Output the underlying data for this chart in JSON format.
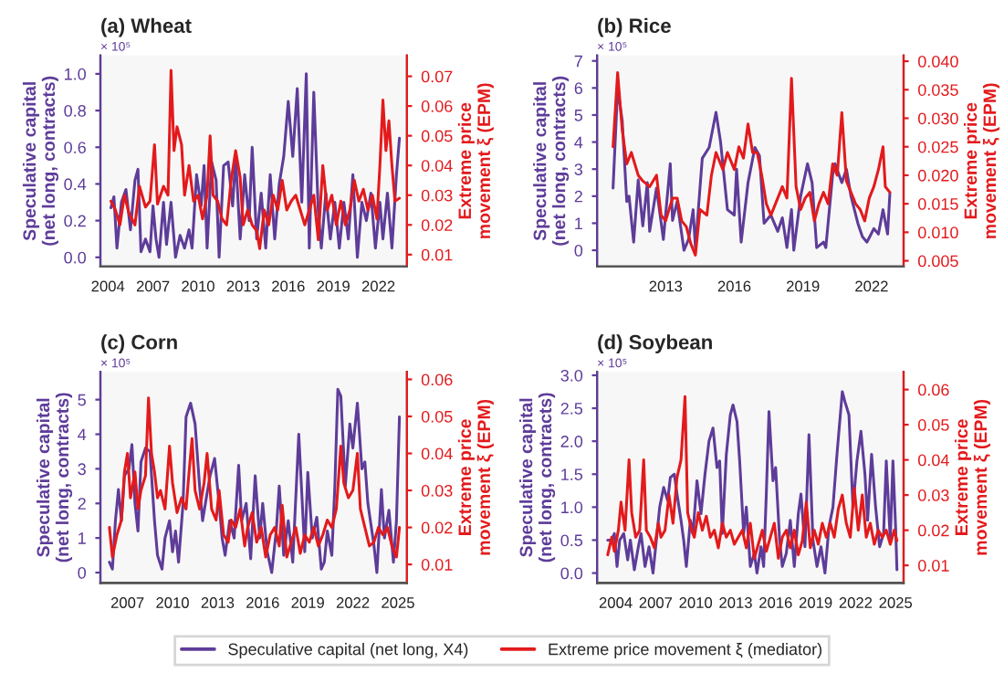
{
  "chart_data": [
    {
      "type": "line",
      "title": "(a) Wheat",
      "ylabel": "Speculative capital\n(net long, contracts)",
      "y2label": "Extreme price\nmovement ξ (EPM)",
      "annotations": [
        "× 10⁵"
      ],
      "legend": "bottom",
      "xlim": [
        2003.5,
        2023.9
      ],
      "xticks": [
        2004,
        2007,
        2010,
        2013,
        2016,
        2019,
        2022
      ],
      "ylim": [
        -0.05,
        1.1
      ],
      "yticks": [
        {
          "value": 0,
          "label": "0.0"
        },
        {
          "value": 0.2,
          "label": "0.2"
        },
        {
          "value": 0.4,
          "label": "0.4"
        },
        {
          "value": 0.6,
          "label": "0.6"
        },
        {
          "value": 0.8,
          "label": "0.8"
        },
        {
          "value": 1,
          "label": "1.0"
        }
      ],
      "y2lim": [
        0.006,
        0.077
      ],
      "y2ticks": [
        0.01,
        0.02,
        0.03,
        0.04,
        0.05,
        0.06,
        0.07
      ],
      "series": [
        {
          "name": "Speculative capital (net long, X4)",
          "color": "#5e3c99",
          "x": [
            2004.2,
            2004.4,
            2004.6,
            2004.9,
            2005.2,
            2005.5,
            2005.8,
            2006.0,
            2006.2,
            2006.5,
            2006.8,
            2007.0,
            2007.2,
            2007.4,
            2007.7,
            2007.9,
            2008.2,
            2008.5,
            2008.8,
            2009.1,
            2009.4,
            2009.6,
            2009.9,
            2010.2,
            2010.4,
            2010.6,
            2010.9,
            2011.2,
            2011.4,
            2011.7,
            2012.0,
            2012.3,
            2012.5,
            2012.8,
            2013.1,
            2013.4,
            2013.6,
            2013.9,
            2014.2,
            2014.5,
            2014.8,
            2015.1,
            2015.4,
            2015.7,
            2016.0,
            2016.3,
            2016.6,
            2016.9,
            2017.2,
            2017.4,
            2017.7,
            2018.0,
            2018.2,
            2018.5,
            2018.8,
            2019.1,
            2019.4,
            2019.7,
            2020.0,
            2020.3,
            2020.6,
            2020.9,
            2021.2,
            2021.5,
            2021.8,
            2022.1,
            2022.3,
            2022.6,
            2022.9,
            2023.2,
            2023.4
          ],
          "values": [
            0.27,
            0.33,
            0.05,
            0.3,
            0.37,
            0.15,
            0.42,
            0.48,
            0.03,
            0.1,
            0.03,
            0.28,
            0.1,
            0.0,
            0.3,
            0.07,
            0.3,
            0.0,
            0.12,
            0.05,
            0.15,
            0.05,
            0.45,
            0.28,
            0.5,
            0.05,
            0.52,
            0.42,
            0.0,
            0.5,
            0.52,
            0.28,
            0.55,
            0.1,
            0.45,
            0.2,
            0.6,
            0.1,
            0.35,
            0.05,
            0.45,
            0.1,
            0.4,
            0.55,
            0.85,
            0.55,
            0.92,
            0.3,
            1.0,
            0.05,
            0.9,
            0.25,
            0.05,
            0.35,
            0.1,
            0.3,
            0.05,
            0.3,
            0.1,
            0.45,
            0.0,
            0.3,
            0.2,
            0.35,
            0.05,
            0.3,
            0.1,
            0.35,
            0.05,
            0.45,
            0.65
          ]
        },
        {
          "name": "Extreme price movement ξ (mediator)",
          "color": "#e31a1c",
          "axis": "y2",
          "x": [
            2004.2,
            2004.5,
            2004.8,
            2005.1,
            2005.4,
            2005.8,
            2006.1,
            2006.5,
            2006.8,
            2007.1,
            2007.3,
            2007.7,
            2008.0,
            2008.2,
            2008.4,
            2008.6,
            2008.9,
            2009.1,
            2009.4,
            2009.7,
            2010.0,
            2010.3,
            2010.6,
            2010.8,
            2011.0,
            2011.3,
            2011.6,
            2011.9,
            2012.2,
            2012.5,
            2012.8,
            2013.0,
            2013.3,
            2013.6,
            2013.9,
            2014.1,
            2014.4,
            2014.7,
            2015.0,
            2015.3,
            2015.6,
            2015.9,
            2016.2,
            2016.5,
            2016.8,
            2017.1,
            2017.4,
            2017.7,
            2018.0,
            2018.3,
            2018.6,
            2018.9,
            2019.2,
            2019.5,
            2019.8,
            2020.1,
            2020.4,
            2020.7,
            2021.0,
            2021.3,
            2021.6,
            2021.9,
            2022.1,
            2022.3,
            2022.5,
            2022.7,
            2022.9,
            2023.1,
            2023.4
          ],
          "values": [
            0.028,
            0.025,
            0.02,
            0.03,
            0.024,
            0.02,
            0.033,
            0.026,
            0.028,
            0.047,
            0.027,
            0.033,
            0.03,
            0.072,
            0.045,
            0.053,
            0.047,
            0.03,
            0.04,
            0.028,
            0.03,
            0.022,
            0.03,
            0.05,
            0.03,
            0.028,
            0.022,
            0.02,
            0.035,
            0.045,
            0.036,
            0.02,
            0.025,
            0.02,
            0.018,
            0.012,
            0.025,
            0.02,
            0.03,
            0.025,
            0.035,
            0.025,
            0.028,
            0.03,
            0.025,
            0.02,
            0.025,
            0.03,
            0.015,
            0.04,
            0.025,
            0.03,
            0.02,
            0.028,
            0.02,
            0.025,
            0.035,
            0.028,
            0.032,
            0.025,
            0.03,
            0.022,
            0.04,
            0.062,
            0.045,
            0.055,
            0.04,
            0.028,
            0.029
          ]
        }
      ]
    },
    {
      "type": "line",
      "title": "(b) Rice",
      "ylabel": "Speculative capital\n(net long, contracts)",
      "y2label": "Extreme price\nmovement ξ (EPM)",
      "annotations": [
        "× 10⁵"
      ],
      "xlim": [
        2010.0,
        2023.4
      ],
      "xticks": [
        2013,
        2016,
        2019,
        2022
      ],
      "ylim": [
        -0.6,
        7.2
      ],
      "yticks": [
        0,
        1,
        2,
        3,
        4,
        5,
        6,
        7
      ],
      "y2lim": [
        0.004,
        0.041
      ],
      "y2ticks": [
        0.005,
        {
          "value": 0.01,
          "label": "0.010"
        },
        0.015,
        {
          "value": 0.02,
          "label": "0.020"
        },
        0.025,
        {
          "value": 0.03,
          "label": "0.030"
        },
        0.035,
        {
          "value": 0.04,
          "label": "0.040"
        }
      ],
      "series": [
        {
          "color": "#5e3c99",
          "x": [
            2010.7,
            2010.9,
            2011.1,
            2011.3,
            2011.4,
            2011.6,
            2011.8,
            2012.0,
            2012.2,
            2012.3,
            2012.6,
            2012.9,
            2013.2,
            2013.3,
            2013.5,
            2013.8,
            2014.0,
            2014.2,
            2014.3,
            2014.6,
            2014.9,
            2015.2,
            2015.4,
            2015.7,
            2016.0,
            2016.1,
            2016.3,
            2016.6,
            2016.9,
            2017.1,
            2017.3,
            2017.6,
            2017.9,
            2018.1,
            2018.3,
            2018.5,
            2018.6,
            2018.9,
            2019.2,
            2019.4,
            2019.6,
            2019.9,
            2020.0,
            2020.3,
            2020.4,
            2020.7,
            2020.9,
            2021.1,
            2021.4,
            2021.6,
            2021.8,
            2022.1,
            2022.3,
            2022.5,
            2022.7,
            2022.8
          ],
          "values": [
            2.3,
            6.0,
            4.8,
            1.8,
            2.0,
            0.3,
            2.6,
            0.9,
            2.5,
            0.7,
            2.3,
            0.4,
            3.2,
            1.1,
            1.8,
            0.0,
            0.4,
            1.5,
            0.1,
            3.4,
            3.8,
            5.1,
            4.0,
            1.5,
            1.3,
            3.0,
            0.3,
            2.5,
            3.8,
            3.5,
            1.0,
            1.3,
            0.7,
            1.2,
            0.1,
            1.5,
            0.0,
            2.0,
            3.2,
            2.5,
            0.1,
            0.3,
            0.1,
            2.8,
            3.2,
            2.5,
            3.0,
            2.0,
            1.0,
            0.5,
            0.3,
            0.8,
            0.6,
            1.5,
            0.6,
            2.1
          ]
        },
        {
          "color": "#e31a1c",
          "axis": "y2",
          "x": [
            2010.7,
            2010.9,
            2011.1,
            2011.3,
            2011.5,
            2011.8,
            2012.0,
            2012.3,
            2012.6,
            2012.8,
            2013.0,
            2013.3,
            2013.5,
            2013.7,
            2013.9,
            2014.1,
            2014.3,
            2014.5,
            2014.8,
            2015.0,
            2015.2,
            2015.5,
            2015.7,
            2016.0,
            2016.2,
            2016.4,
            2016.6,
            2016.8,
            2017.0,
            2017.2,
            2017.4,
            2017.6,
            2017.9,
            2018.1,
            2018.3,
            2018.5,
            2018.7,
            2018.9,
            2019.1,
            2019.3,
            2019.5,
            2019.7,
            2019.9,
            2020.1,
            2020.3,
            2020.5,
            2020.7,
            2020.9,
            2021.1,
            2021.3,
            2021.5,
            2021.7,
            2021.9,
            2022.1,
            2022.3,
            2022.5,
            2022.6,
            2022.8
          ],
          "values": [
            0.025,
            0.038,
            0.028,
            0.022,
            0.024,
            0.02,
            0.019,
            0.018,
            0.02,
            0.013,
            0.012,
            0.016,
            0.016,
            0.012,
            0.011,
            0.008,
            0.006,
            0.014,
            0.013,
            0.02,
            0.024,
            0.021,
            0.024,
            0.021,
            0.025,
            0.023,
            0.029,
            0.024,
            0.024,
            0.02,
            0.015,
            0.013,
            0.016,
            0.018,
            0.016,
            0.037,
            0.018,
            0.014,
            0.016,
            0.017,
            0.012,
            0.015,
            0.017,
            0.015,
            0.022,
            0.02,
            0.031,
            0.019,
            0.017,
            0.015,
            0.014,
            0.012,
            0.016,
            0.018,
            0.021,
            0.025,
            0.018,
            0.017
          ]
        }
      ]
    },
    {
      "type": "line",
      "title": "(c) Corn",
      "ylabel": "Speculative capital\n(net long, contracts)",
      "y2label": "Extreme price\nmovement ξ (EPM)",
      "annotations": [
        "× 10⁵"
      ],
      "xlim": [
        2005.2,
        2025.6
      ],
      "xticks": [
        2007,
        2010,
        2013,
        2016,
        2019,
        2022,
        2025
      ],
      "ylim": [
        -0.3,
        5.8
      ],
      "yticks": [
        0,
        1,
        2,
        3,
        4,
        5
      ],
      "y2lim": [
        0.005,
        0.062
      ],
      "y2ticks": [
        0.01,
        0.02,
        0.03,
        0.04,
        0.05,
        0.06
      ],
      "series": [
        {
          "color": "#5e3c99",
          "x": [
            2005.8,
            2006.0,
            2006.2,
            2006.4,
            2006.6,
            2006.8,
            2007.1,
            2007.3,
            2007.5,
            2007.7,
            2007.9,
            2008.2,
            2008.5,
            2008.8,
            2009.0,
            2009.3,
            2009.5,
            2009.8,
            2010.0,
            2010.2,
            2010.4,
            2010.7,
            2010.9,
            2011.2,
            2011.5,
            2011.8,
            2012.0,
            2012.3,
            2012.5,
            2012.8,
            2013.1,
            2013.3,
            2013.5,
            2013.8,
            2014.1,
            2014.4,
            2014.6,
            2014.9,
            2015.2,
            2015.5,
            2015.8,
            2016.0,
            2016.3,
            2016.6,
            2016.9,
            2017.1,
            2017.4,
            2017.7,
            2018.0,
            2018.4,
            2018.8,
            2019.0,
            2019.3,
            2019.6,
            2019.9,
            2020.1,
            2020.3,
            2020.6,
            2020.8,
            2021.0,
            2021.2,
            2021.5,
            2021.8,
            2022.0,
            2022.3,
            2022.6,
            2022.8,
            2023.0,
            2023.2,
            2023.4,
            2023.6,
            2023.9,
            2024.1,
            2024.4,
            2024.7,
            2024.9,
            2025.1
          ],
          "values": [
            0.3,
            0.1,
            1.5,
            2.4,
            1.5,
            2.8,
            3.0,
            3.7,
            2.0,
            1.2,
            3.2,
            3.6,
            3.5,
            1.5,
            0.5,
            0.1,
            1.0,
            1.5,
            0.6,
            1.2,
            0.3,
            2.0,
            4.5,
            4.9,
            4.3,
            2.5,
            1.5,
            2.3,
            2.8,
            3.3,
            2.0,
            1.0,
            0.5,
            1.5,
            1.0,
            3.1,
            1.5,
            2.0,
            0.4,
            2.8,
            1.0,
            2.0,
            0.6,
            0.0,
            1.2,
            2.5,
            0.5,
            1.5,
            0.3,
            4.0,
            0.6,
            2.9,
            1.0,
            1.6,
            0.1,
            0.3,
            1.2,
            0.5,
            2.5,
            5.3,
            5.1,
            2.5,
            4.3,
            3.6,
            4.9,
            3.0,
            3.2,
            2.0,
            1.4,
            0.8,
            0.0,
            2.4,
            1.0,
            1.8,
            0.3,
            1.5,
            4.5
          ]
        },
        {
          "color": "#e31a1c",
          "axis": "y2",
          "x": [
            2005.8,
            2006.0,
            2006.3,
            2006.6,
            2006.8,
            2007.0,
            2007.2,
            2007.5,
            2007.7,
            2007.9,
            2008.2,
            2008.4,
            2008.6,
            2008.8,
            2009.0,
            2009.2,
            2009.5,
            2009.8,
            2010.0,
            2010.3,
            2010.6,
            2010.9,
            2011.1,
            2011.3,
            2011.5,
            2011.8,
            2012.1,
            2012.3,
            2012.6,
            2012.9,
            2013.1,
            2013.4,
            2013.7,
            2013.9,
            2014.2,
            2014.5,
            2014.8,
            2015.0,
            2015.3,
            2015.6,
            2015.9,
            2016.2,
            2016.5,
            2016.8,
            2017.1,
            2017.3,
            2017.6,
            2017.9,
            2018.2,
            2018.5,
            2018.8,
            2019.1,
            2019.4,
            2019.7,
            2020.0,
            2020.3,
            2020.6,
            2020.9,
            2021.2,
            2021.4,
            2021.7,
            2022.0,
            2022.3,
            2022.5,
            2022.8,
            2023.1,
            2023.4,
            2023.7,
            2024.0,
            2024.3,
            2024.6,
            2024.9,
            2025.1
          ],
          "values": [
            0.02,
            0.012,
            0.018,
            0.022,
            0.035,
            0.04,
            0.028,
            0.035,
            0.025,
            0.03,
            0.034,
            0.055,
            0.04,
            0.035,
            0.028,
            0.03,
            0.025,
            0.042,
            0.032,
            0.024,
            0.028,
            0.025,
            0.035,
            0.044,
            0.03,
            0.025,
            0.032,
            0.04,
            0.025,
            0.022,
            0.03,
            0.018,
            0.016,
            0.022,
            0.02,
            0.025,
            0.015,
            0.02,
            0.024,
            0.016,
            0.02,
            0.012,
            0.018,
            0.02,
            0.015,
            0.026,
            0.012,
            0.016,
            0.02,
            0.013,
            0.018,
            0.016,
            0.02,
            0.015,
            0.018,
            0.022,
            0.02,
            0.025,
            0.042,
            0.032,
            0.028,
            0.03,
            0.04,
            0.025,
            0.02,
            0.015,
            0.016,
            0.02,
            0.018,
            0.02,
            0.015,
            0.012,
            0.02
          ]
        }
      ]
    },
    {
      "type": "line",
      "title": "(d) Soybean",
      "ylabel": "Speculative capital\n(net long, contracts)",
      "y2label": "Extreme price\nmovement ξ (EPM)",
      "annotations": [
        "× 10⁵"
      ],
      "xlim": [
        2002.6,
        2025.6
      ],
      "xticks": [
        2004,
        2007,
        2010,
        2013,
        2016,
        2019,
        2022,
        2025
      ],
      "ylim": [
        -0.15,
        3.05
      ],
      "yticks": [
        {
          "value": 0,
          "label": "0.0"
        },
        0.5,
        {
          "value": 1,
          "label": "1.0"
        },
        1.5,
        {
          "value": 2,
          "label": "2.0"
        },
        2.5,
        {
          "value": 3,
          "label": "3.0"
        }
      ],
      "y2lim": [
        0.005,
        0.065
      ],
      "y2ticks": [
        0.01,
        0.02,
        0.03,
        0.04,
        0.05,
        0.06
      ],
      "series": [
        {
          "color": "#5e3c99",
          "x": [
            2003.4,
            2003.7,
            2003.9,
            2004.1,
            2004.3,
            2004.6,
            2004.9,
            2005.1,
            2005.4,
            2005.7,
            2005.9,
            2006.2,
            2006.5,
            2006.8,
            2007.1,
            2007.3,
            2007.6,
            2007.9,
            2008.1,
            2008.4,
            2008.6,
            2008.9,
            2009.1,
            2009.3,
            2009.6,
            2009.8,
            2010.1,
            2010.4,
            2010.7,
            2011.0,
            2011.3,
            2011.6,
            2011.8,
            2012.0,
            2012.3,
            2012.6,
            2012.8,
            2013.1,
            2013.3,
            2013.6,
            2013.8,
            2014.1,
            2014.4,
            2014.6,
            2014.9,
            2015.1,
            2015.3,
            2015.5,
            2015.8,
            2016.0,
            2016.3,
            2016.5,
            2016.8,
            2017.1,
            2017.4,
            2017.7,
            2017.9,
            2018.2,
            2018.5,
            2018.8,
            2019.1,
            2019.4,
            2019.7,
            2020.0,
            2020.3,
            2020.6,
            2021.0,
            2021.2,
            2021.5,
            2021.8,
            2022.1,
            2022.4,
            2022.7,
            2022.9,
            2023.2,
            2023.5,
            2023.8,
            2024.1,
            2024.3,
            2024.6,
            2024.8,
            2025.0,
            2025.1
          ],
          "values": [
            0.5,
            0.5,
            0.6,
            0.1,
            0.5,
            0.6,
            0.2,
            0.5,
            0.05,
            0.4,
            0.6,
            0.1,
            0.4,
            0.0,
            0.6,
            1.0,
            1.3,
            1.1,
            1.45,
            1.5,
            1.2,
            0.8,
            0.5,
            0.1,
            0.8,
            0.6,
            1.4,
            0.9,
            1.5,
            2.0,
            2.2,
            1.6,
            1.7,
            0.6,
            1.8,
            2.4,
            2.55,
            2.3,
            1.7,
            0.6,
            1.0,
            0.1,
            0.3,
            0.0,
            0.4,
            0.1,
            1.2,
            2.45,
            1.4,
            1.6,
            0.5,
            0.1,
            0.3,
            0.8,
            0.1,
            0.9,
            1.2,
            0.4,
            2.1,
            0.5,
            0.1,
            0.4,
            0.0,
            0.7,
            1.0,
            1.8,
            2.75,
            2.6,
            2.4,
            1.0,
            1.7,
            2.15,
            1.5,
            0.8,
            1.8,
            1.0,
            0.4,
            0.6,
            1.7,
            0.5,
            1.7,
            0.7,
            0.05
          ]
        },
        {
          "color": "#e31a1c",
          "axis": "y2",
          "x": [
            2003.4,
            2003.7,
            2003.9,
            2004.2,
            2004.4,
            2004.7,
            2005.0,
            2005.2,
            2005.5,
            2005.8,
            2006.1,
            2006.3,
            2006.6,
            2006.9,
            2007.2,
            2007.4,
            2007.7,
            2008.0,
            2008.3,
            2008.6,
            2008.9,
            2009.2,
            2009.4,
            2009.7,
            2009.9,
            2010.2,
            2010.5,
            2010.8,
            2011.1,
            2011.4,
            2011.7,
            2012.0,
            2012.3,
            2012.6,
            2012.9,
            2013.2,
            2013.5,
            2013.8,
            2014.1,
            2014.4,
            2014.7,
            2015.0,
            2015.3,
            2015.6,
            2015.9,
            2016.2,
            2016.5,
            2016.8,
            2017.1,
            2017.4,
            2017.7,
            2018.0,
            2018.3,
            2018.6,
            2018.9,
            2019.2,
            2019.5,
            2019.8,
            2020.1,
            2020.4,
            2020.7,
            2021.0,
            2021.3,
            2021.6,
            2021.9,
            2022.2,
            2022.5,
            2022.8,
            2023.1,
            2023.4,
            2023.7,
            2024.0,
            2024.3,
            2024.6,
            2024.9,
            2025.1
          ],
          "values": [
            0.013,
            0.018,
            0.014,
            0.02,
            0.028,
            0.02,
            0.04,
            0.025,
            0.018,
            0.02,
            0.04,
            0.02,
            0.018,
            0.015,
            0.022,
            0.018,
            0.02,
            0.03,
            0.022,
            0.035,
            0.04,
            0.058,
            0.025,
            0.02,
            0.018,
            0.025,
            0.02,
            0.024,
            0.018,
            0.02,
            0.015,
            0.022,
            0.018,
            0.02,
            0.016,
            0.018,
            0.02,
            0.015,
            0.022,
            0.012,
            0.016,
            0.02,
            0.014,
            0.018,
            0.022,
            0.012,
            0.018,
            0.02,
            0.015,
            0.02,
            0.013,
            0.017,
            0.028,
            0.015,
            0.02,
            0.016,
            0.022,
            0.018,
            0.022,
            0.018,
            0.026,
            0.03,
            0.022,
            0.018,
            0.032,
            0.02,
            0.03,
            0.018,
            0.022,
            0.016,
            0.02,
            0.018,
            0.02,
            0.016,
            0.02,
            0.017
          ]
        }
      ]
    }
  ]
}
